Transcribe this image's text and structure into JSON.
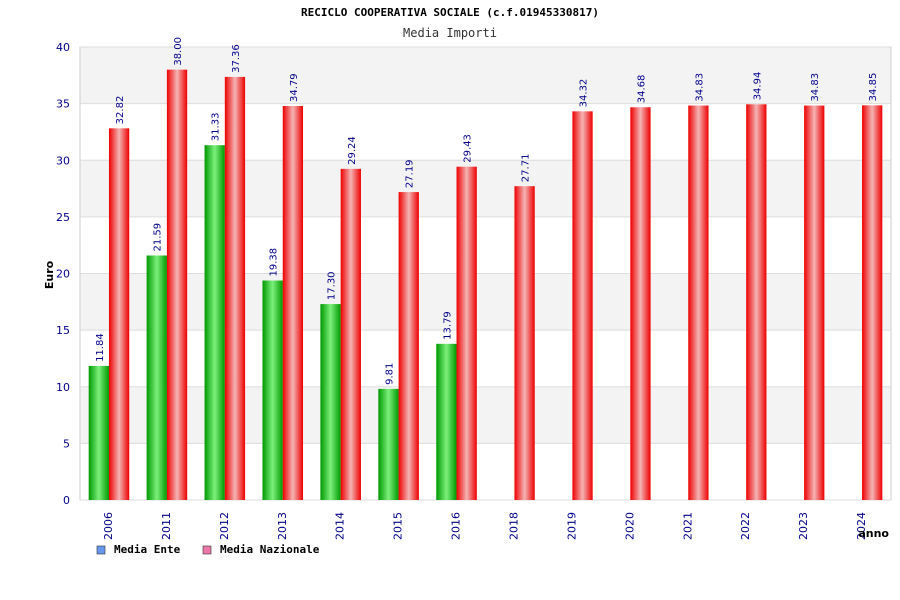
{
  "chart_data": {
    "type": "bar",
    "title": "RECICLO COOPERATIVA SOCIALE (c.f.01945330817)",
    "subtitle": "Media Importi",
    "xlabel": "anno",
    "ylabel": "Euro",
    "ylim": [
      0,
      40
    ],
    "yticks": [
      0,
      5,
      10,
      15,
      20,
      25,
      30,
      35,
      40
    ],
    "grid": true,
    "legend_position": "bottom-left",
    "categories": [
      "2006",
      "2011",
      "2012",
      "2013",
      "2014",
      "2015",
      "2016",
      "2018",
      "2019",
      "2020",
      "2021",
      "2022",
      "2023",
      "2024"
    ],
    "series": [
      {
        "name": "Media Ente",
        "color": "#00aa00",
        "legend_color": "#6699ee",
        "values": [
          11.84,
          21.59,
          31.33,
          19.38,
          17.3,
          9.81,
          13.79,
          null,
          null,
          null,
          null,
          null,
          null,
          null
        ],
        "labels": [
          "11.84",
          "21.59",
          "31.33",
          "19.38",
          "17.30",
          "9.81",
          "13.79",
          null,
          null,
          null,
          null,
          null,
          null,
          null
        ]
      },
      {
        "name": "Media Nazionale",
        "color": "#ee0000",
        "legend_color": "#ee77aa",
        "values": [
          32.82,
          38.0,
          37.36,
          34.79,
          29.24,
          27.19,
          29.43,
          27.71,
          34.32,
          34.68,
          34.83,
          34.94,
          34.83,
          34.85
        ],
        "labels": [
          "32.82",
          "38.00",
          "37.36",
          "34.79",
          "29.24",
          "27.19",
          "29.43",
          "27.71",
          "34.32",
          "34.68",
          "34.83",
          "34.94",
          "34.83",
          "34.85"
        ]
      }
    ]
  }
}
